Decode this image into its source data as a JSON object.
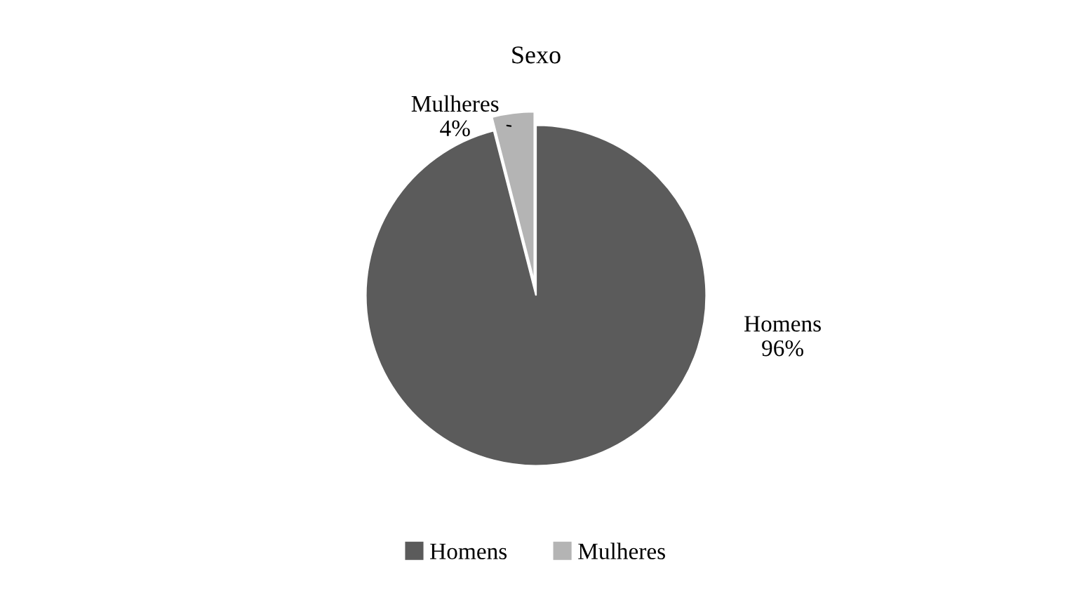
{
  "chart_data": {
    "type": "pie",
    "title": "Sexo",
    "categories": [
      "Homens",
      "Mulheres"
    ],
    "values": [
      96,
      4
    ],
    "colors": [
      "#5b5b5b",
      "#b4b4b4"
    ],
    "value_labels": [
      "96%",
      "4%"
    ],
    "legend": "bottom"
  }
}
